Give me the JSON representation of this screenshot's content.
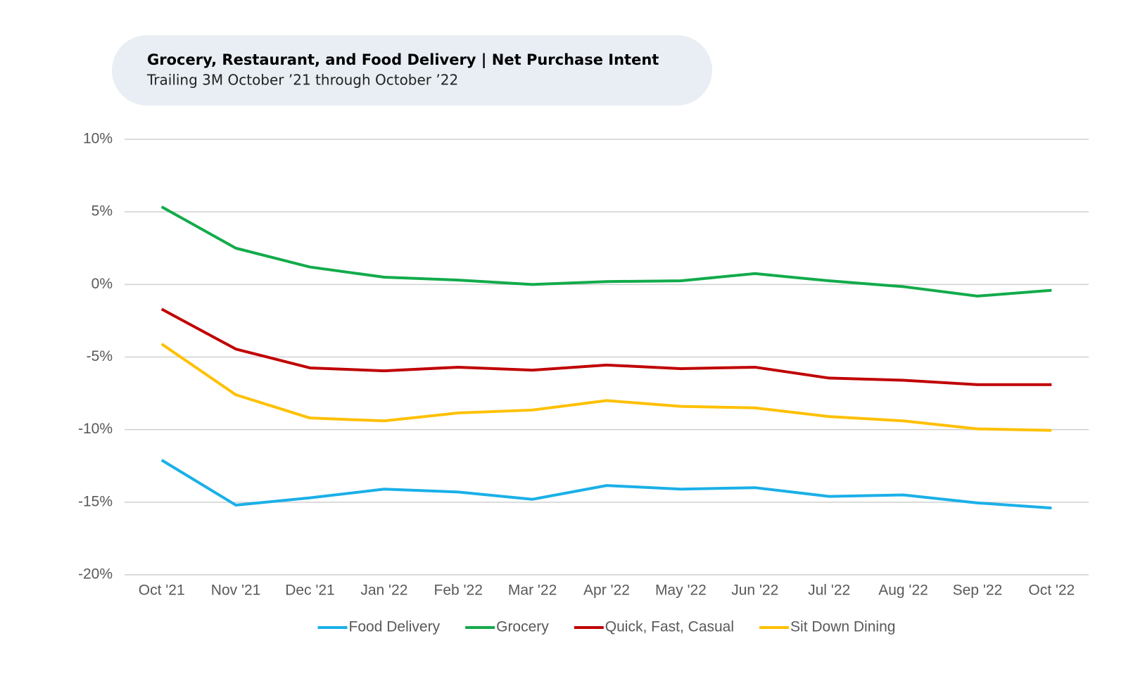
{
  "chart_data": {
    "type": "line",
    "title": "Grocery, Restaurant, and Food Delivery | Net Purchase Intent",
    "subtitle": "Trailing 3M October ’21 through October ’22",
    "categories": [
      "Oct '21",
      "Nov '21",
      "Dec '21",
      "Jan '22",
      "Feb '22",
      "Mar '22",
      "Apr '22",
      "May '22",
      "Jun '22",
      "Jul '22",
      "Aug '22",
      "Sep '22",
      "Oct '22"
    ],
    "series": [
      {
        "name": "Food Delivery",
        "color": "#1ab0e8",
        "values": [
          -12.1,
          -15.2,
          -14.7,
          -14.1,
          -14.3,
          -14.8,
          -13.85,
          -14.1,
          -14.0,
          -14.6,
          -14.5,
          -15.05,
          -15.4
        ]
      },
      {
        "name": "Grocery",
        "color": "#12ab4b",
        "values": [
          5.35,
          2.5,
          1.2,
          0.5,
          0.3,
          0.0,
          0.2,
          0.25,
          0.75,
          0.25,
          -0.15,
          -0.8,
          -0.4
        ]
      },
      {
        "name": "Quick, Fast, Casual",
        "color": "#c00000",
        "values": [
          -1.7,
          -4.45,
          -5.75,
          -5.95,
          -5.7,
          -5.9,
          -5.55,
          -5.8,
          -5.7,
          -6.45,
          -6.6,
          -6.9,
          -6.9
        ]
      },
      {
        "name": "Sit Down Dining",
        "color": "#ffc000",
        "values": [
          -4.1,
          -7.6,
          -9.2,
          -9.4,
          -8.85,
          -8.65,
          -8.0,
          -8.4,
          -8.5,
          -9.1,
          -9.4,
          -9.95,
          -10.05
        ]
      }
    ],
    "ylim": [
      -20,
      10
    ],
    "yticks": [
      {
        "value": -20,
        "label": "-20%"
      },
      {
        "value": -15,
        "label": "-15%"
      },
      {
        "value": -10,
        "label": "-10%"
      },
      {
        "value": -5,
        "label": "-5%"
      },
      {
        "value": 0,
        "label": "0%"
      },
      {
        "value": 5,
        "label": "5%"
      },
      {
        "value": 10,
        "label": "10%"
      }
    ],
    "grid": true,
    "legend": "bottom"
  }
}
